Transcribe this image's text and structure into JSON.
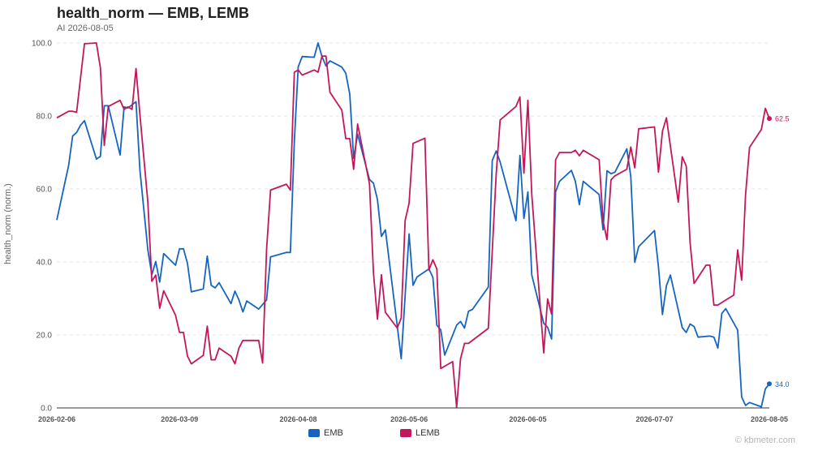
{
  "header": {
    "title": "health_norm — EMB, LEMB",
    "subtitle": "AI 2026-08-05"
  },
  "watermark": "© kbmeter.com",
  "colors": {
    "EMB": "#1565c0",
    "LEMB": "#c2185b",
    "grid": "#e4e4e4",
    "axis": "#333333"
  },
  "chart_data": {
    "type": "line",
    "title": "health_norm — EMB, LEMB",
    "subtitle": "AI 2026-08-05",
    "xlabel": "",
    "ylabel": "health_norm (norm.)",
    "ylim": [
      0,
      100
    ],
    "yticks": [
      "0.0",
      "20.0",
      "40.0",
      "60.0",
      "80.0",
      "100.0"
    ],
    "xlim": [
      "2026-02-06",
      "2026-08-05"
    ],
    "xticks": [
      "2026-02-06",
      "2026-03-09",
      "2026-04-08",
      "2026-05-06",
      "2026-06-05",
      "2026-07-07",
      "2026-08-05"
    ],
    "grid": true,
    "legend": "bottom-center",
    "series": [
      {
        "name": "EMB",
        "end_label": "34.0",
        "points": [
          [
            "2026-02-06",
            51.5
          ],
          [
            "2026-02-09",
            66.5
          ],
          [
            "2026-02-10",
            74.5
          ],
          [
            "2026-02-11",
            75.5
          ],
          [
            "2026-02-12",
            77.5
          ],
          [
            "2026-02-13",
            78.7
          ],
          [
            "2026-02-16",
            68.2
          ],
          [
            "2026-02-17",
            68.9
          ],
          [
            "2026-02-18",
            82.8
          ],
          [
            "2026-02-19",
            82.8
          ],
          [
            "2026-02-22",
            69.3
          ],
          [
            "2026-02-23",
            82.5
          ],
          [
            "2026-02-24",
            82.2
          ],
          [
            "2026-02-26",
            83.9
          ],
          [
            "2026-02-27",
            65.2
          ],
          [
            "2026-03-01",
            43.3
          ],
          [
            "2026-03-02",
            36.5
          ],
          [
            "2026-03-03",
            40.1
          ],
          [
            "2026-03-04",
            34.5
          ],
          [
            "2026-03-05",
            42.3
          ],
          [
            "2026-03-08",
            39.1
          ],
          [
            "2026-03-09",
            43.6
          ],
          [
            "2026-03-10",
            43.6
          ],
          [
            "2026-03-11",
            39.6
          ],
          [
            "2026-03-12",
            31.8
          ],
          [
            "2026-03-15",
            32.6
          ],
          [
            "2026-03-16",
            41.6
          ],
          [
            "2026-03-17",
            33.6
          ],
          [
            "2026-03-18",
            32.9
          ],
          [
            "2026-03-19",
            34.3
          ],
          [
            "2026-03-22",
            28.6
          ],
          [
            "2026-03-23",
            32.0
          ],
          [
            "2026-03-24",
            29.6
          ],
          [
            "2026-03-25",
            26.3
          ],
          [
            "2026-03-26",
            29.3
          ],
          [
            "2026-03-29",
            27.1
          ],
          [
            "2026-03-31",
            29.6
          ],
          [
            "2026-04-01",
            41.4
          ],
          [
            "2026-04-05",
            42.6
          ],
          [
            "2026-04-06",
            42.6
          ],
          [
            "2026-04-07",
            73.0
          ],
          [
            "2026-04-08",
            93.5
          ],
          [
            "2026-04-09",
            96.3
          ],
          [
            "2026-04-12",
            96.1
          ],
          [
            "2026-04-13",
            100.0
          ],
          [
            "2026-04-14",
            96.3
          ],
          [
            "2026-04-15",
            93.7
          ],
          [
            "2026-04-16",
            95.1
          ],
          [
            "2026-04-19",
            93.4
          ],
          [
            "2026-04-20",
            91.7
          ],
          [
            "2026-04-21",
            86.0
          ],
          [
            "2026-04-22",
            68.4
          ],
          [
            "2026-04-23",
            75.0
          ],
          [
            "2026-04-26",
            62.6
          ],
          [
            "2026-04-27",
            61.6
          ],
          [
            "2026-04-28",
            57.1
          ],
          [
            "2026-04-29",
            47.0
          ],
          [
            "2026-04-30",
            48.8
          ],
          [
            "2026-05-03",
            22.5
          ],
          [
            "2026-05-04",
            13.5
          ],
          [
            "2026-05-05",
            30.7
          ],
          [
            "2026-05-06",
            47.7
          ],
          [
            "2026-05-07",
            33.6
          ],
          [
            "2026-05-08",
            35.9
          ],
          [
            "2026-05-11",
            38.1
          ],
          [
            "2026-05-12",
            35.8
          ],
          [
            "2026-05-13",
            22.7
          ],
          [
            "2026-05-14",
            21.4
          ],
          [
            "2026-05-15",
            14.5
          ],
          [
            "2026-05-18",
            22.7
          ],
          [
            "2026-05-19",
            23.7
          ],
          [
            "2026-05-20",
            21.9
          ],
          [
            "2026-05-21",
            26.5
          ],
          [
            "2026-05-22",
            27.0
          ],
          [
            "2026-05-26",
            33.1
          ],
          [
            "2026-05-27",
            67.8
          ],
          [
            "2026-05-28",
            70.4
          ],
          [
            "2026-05-29",
            67.4
          ],
          [
            "2026-06-02",
            51.3
          ],
          [
            "2026-06-03",
            69.2
          ],
          [
            "2026-06-04",
            51.9
          ],
          [
            "2026-06-05",
            59.2
          ],
          [
            "2026-06-06",
            36.4
          ],
          [
            "2026-06-09",
            23.2
          ],
          [
            "2026-06-10",
            22.1
          ],
          [
            "2026-06-11",
            18.9
          ],
          [
            "2026-06-12",
            59.2
          ],
          [
            "2026-06-13",
            62.1
          ],
          [
            "2026-06-16",
            65.1
          ],
          [
            "2026-06-17",
            62.1
          ],
          [
            "2026-06-18",
            55.7
          ],
          [
            "2026-06-19",
            62.1
          ],
          [
            "2026-06-23",
            58.5
          ],
          [
            "2026-06-24",
            48.8
          ],
          [
            "2026-06-25",
            65.0
          ],
          [
            "2026-06-26",
            64.2
          ],
          [
            "2026-06-27",
            64.6
          ],
          [
            "2026-06-30",
            71.0
          ],
          [
            "2026-07-01",
            63.4
          ],
          [
            "2026-07-02",
            39.9
          ],
          [
            "2026-07-03",
            44.2
          ],
          [
            "2026-07-07",
            48.6
          ],
          [
            "2026-07-08",
            38.6
          ],
          [
            "2026-07-09",
            25.6
          ],
          [
            "2026-07-10",
            33.5
          ],
          [
            "2026-07-11",
            36.4
          ],
          [
            "2026-07-14",
            22.0
          ],
          [
            "2026-07-15",
            20.7
          ],
          [
            "2026-07-16",
            23.0
          ],
          [
            "2026-07-17",
            22.3
          ],
          [
            "2026-07-18",
            19.4
          ],
          [
            "2026-07-21",
            19.7
          ],
          [
            "2026-07-22",
            19.4
          ],
          [
            "2026-07-23",
            16.4
          ],
          [
            "2026-07-24",
            25.9
          ],
          [
            "2026-07-25",
            27.2
          ],
          [
            "2026-07-28",
            21.3
          ],
          [
            "2026-07-29",
            3.0
          ],
          [
            "2026-07-30",
            0.7
          ],
          [
            "2026-07-31",
            1.5
          ],
          [
            "2026-08-03",
            0.3
          ],
          [
            "2026-08-04",
            5.2
          ],
          [
            "2026-08-05",
            6.6
          ]
        ]
      },
      {
        "name": "LEMB",
        "end_label": "62.5",
        "points": [
          [
            "2026-02-06",
            79.5
          ],
          [
            "2026-02-09",
            81.3
          ],
          [
            "2026-02-10",
            81.3
          ],
          [
            "2026-02-11",
            81.0
          ],
          [
            "2026-02-13",
            99.8
          ],
          [
            "2026-02-16",
            100.0
          ],
          [
            "2026-02-17",
            93.2
          ],
          [
            "2026-02-18",
            71.9
          ],
          [
            "2026-02-19",
            82.6
          ],
          [
            "2026-02-22",
            84.3
          ],
          [
            "2026-02-23",
            81.8
          ],
          [
            "2026-02-24",
            82.5
          ],
          [
            "2026-02-25",
            81.8
          ],
          [
            "2026-02-26",
            93.0
          ],
          [
            "2026-02-27",
            80.4
          ],
          [
            "2026-03-01",
            56.4
          ],
          [
            "2026-03-02",
            34.7
          ],
          [
            "2026-03-03",
            36.4
          ],
          [
            "2026-03-04",
            27.3
          ],
          [
            "2026-03-05",
            32.1
          ],
          [
            "2026-03-08",
            25.4
          ],
          [
            "2026-03-09",
            20.7
          ],
          [
            "2026-03-10",
            20.7
          ],
          [
            "2026-03-11",
            14.2
          ],
          [
            "2026-03-12",
            12.1
          ],
          [
            "2026-03-15",
            14.4
          ],
          [
            "2026-03-16",
            22.4
          ],
          [
            "2026-03-17",
            13.2
          ],
          [
            "2026-03-18",
            13.2
          ],
          [
            "2026-03-19",
            16.4
          ],
          [
            "2026-03-22",
            14.2
          ],
          [
            "2026-03-23",
            12.1
          ],
          [
            "2026-03-24",
            16.4
          ],
          [
            "2026-03-25",
            18.5
          ],
          [
            "2026-03-29",
            18.5
          ],
          [
            "2026-03-30",
            12.3
          ],
          [
            "2026-03-31",
            43.5
          ],
          [
            "2026-04-01",
            59.7
          ],
          [
            "2026-04-05",
            61.3
          ],
          [
            "2026-04-06",
            59.7
          ],
          [
            "2026-04-07",
            92.0
          ],
          [
            "2026-04-08",
            92.6
          ],
          [
            "2026-04-09",
            91.2
          ],
          [
            "2026-04-12",
            92.6
          ],
          [
            "2026-04-13",
            92.0
          ],
          [
            "2026-04-14",
            96.4
          ],
          [
            "2026-04-15",
            96.4
          ],
          [
            "2026-04-16",
            86.5
          ],
          [
            "2026-04-19",
            81.6
          ],
          [
            "2026-04-20",
            73.8
          ],
          [
            "2026-04-21",
            73.8
          ],
          [
            "2026-04-22",
            65.4
          ],
          [
            "2026-04-23",
            77.8
          ],
          [
            "2026-04-26",
            61.4
          ],
          [
            "2026-04-27",
            37.0
          ],
          [
            "2026-04-28",
            24.3
          ],
          [
            "2026-04-29",
            36.5
          ],
          [
            "2026-04-30",
            26.2
          ],
          [
            "2026-05-03",
            21.9
          ],
          [
            "2026-05-04",
            24.7
          ],
          [
            "2026-05-05",
            51.3
          ],
          [
            "2026-05-06",
            56.1
          ],
          [
            "2026-05-07",
            72.5
          ],
          [
            "2026-05-10",
            73.9
          ],
          [
            "2026-05-11",
            37.8
          ],
          [
            "2026-05-12",
            40.6
          ],
          [
            "2026-05-13",
            38.1
          ],
          [
            "2026-05-14",
            10.8
          ],
          [
            "2026-05-17",
            12.7
          ],
          [
            "2026-05-18",
            0.1
          ],
          [
            "2026-05-19",
            13.5
          ],
          [
            "2026-05-20",
            17.7
          ],
          [
            "2026-05-21",
            17.7
          ],
          [
            "2026-05-26",
            21.8
          ],
          [
            "2026-05-27",
            43.0
          ],
          [
            "2026-05-28",
            63.9
          ],
          [
            "2026-05-29",
            78.9
          ],
          [
            "2026-06-02",
            82.6
          ],
          [
            "2026-06-03",
            85.2
          ],
          [
            "2026-06-04",
            64.3
          ],
          [
            "2026-06-05",
            84.3
          ],
          [
            "2026-06-06",
            58.4
          ],
          [
            "2026-06-09",
            15.1
          ],
          [
            "2026-06-10",
            29.9
          ],
          [
            "2026-06-11",
            25.7
          ],
          [
            "2026-06-12",
            68.0
          ],
          [
            "2026-06-13",
            70.0
          ],
          [
            "2026-06-16",
            70.0
          ],
          [
            "2026-06-17",
            70.6
          ],
          [
            "2026-06-18",
            69.1
          ],
          [
            "2026-06-19",
            70.6
          ],
          [
            "2026-06-23",
            68.0
          ],
          [
            "2026-06-24",
            51.2
          ],
          [
            "2026-06-25",
            46.1
          ],
          [
            "2026-06-26",
            62.5
          ],
          [
            "2026-06-27",
            63.6
          ],
          [
            "2026-06-30",
            65.4
          ],
          [
            "2026-07-01",
            71.5
          ],
          [
            "2026-07-02",
            65.8
          ],
          [
            "2026-07-03",
            76.5
          ],
          [
            "2026-07-07",
            77.0
          ],
          [
            "2026-07-08",
            64.6
          ],
          [
            "2026-07-09",
            75.8
          ],
          [
            "2026-07-10",
            79.5
          ],
          [
            "2026-07-13",
            56.4
          ],
          [
            "2026-07-14",
            68.8
          ],
          [
            "2026-07-15",
            66.3
          ],
          [
            "2026-07-16",
            45.2
          ],
          [
            "2026-07-17",
            34.1
          ],
          [
            "2026-07-20",
            39.1
          ],
          [
            "2026-07-21",
            39.1
          ],
          [
            "2026-07-22",
            28.2
          ],
          [
            "2026-07-23",
            28.2
          ],
          [
            "2026-07-27",
            30.9
          ],
          [
            "2026-07-28",
            43.3
          ],
          [
            "2026-07-29",
            35.0
          ],
          [
            "2026-07-30",
            58.4
          ],
          [
            "2026-07-31",
            71.4
          ],
          [
            "2026-08-03",
            76.3
          ],
          [
            "2026-08-04",
            82.1
          ],
          [
            "2026-08-05",
            79.3
          ]
        ]
      }
    ]
  }
}
